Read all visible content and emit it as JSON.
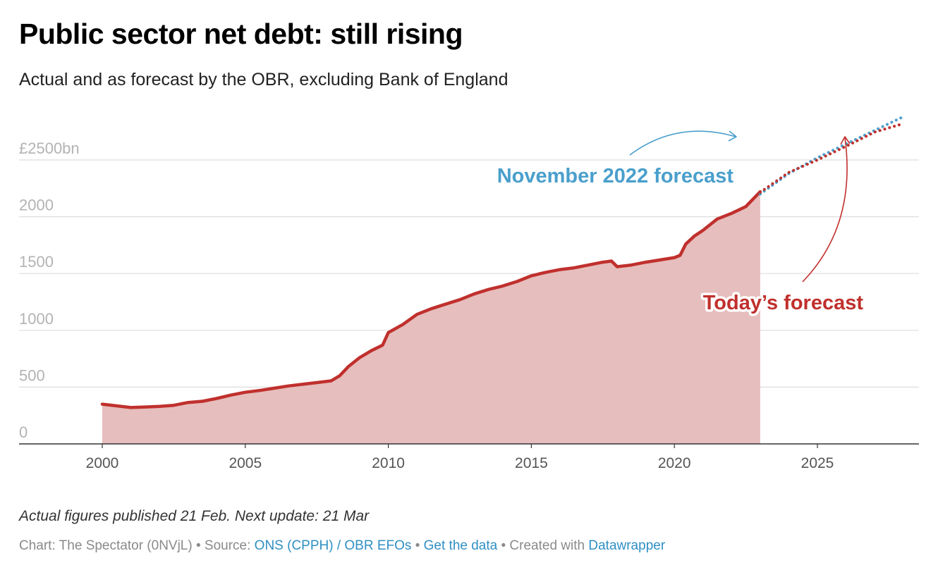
{
  "header": {
    "title": "Public sector net debt: still rising",
    "subtitle": "Actual and as forecast by the OBR, excluding Bank of England"
  },
  "footer": {
    "note": "Actual figures published 21 Feb. Next update: 21 Mar",
    "credit_prefix": "Chart: The Spectator (0NVjL) • Source: ",
    "source_link": "ONS (CPPH) / OBR EFOs",
    "separator1": " • ",
    "data_link": "Get the data",
    "separator2": " • Created with ",
    "tool_link": "Datawrapper"
  },
  "colors": {
    "actual_line": "#c0302d",
    "actual_fill": "#e6bebd",
    "nov2022_forecast": "#4a9fcc",
    "today_forecast": "#c0302d",
    "gridline": "#dddddd",
    "axis": "#333333"
  },
  "chart_data": {
    "type": "area",
    "title": "Public sector net debt: still rising",
    "xlabel": "",
    "ylabel": "",
    "x_range": [
      1998.8,
      2028.4
    ],
    "ylim": [
      0,
      2650
    ],
    "y_ticks": [
      0,
      500,
      1000,
      1500,
      2000,
      2500
    ],
    "y_tick_labels": [
      "0",
      "500",
      "1000",
      "1500",
      "2000",
      "£2500bn"
    ],
    "x_ticks": [
      2000,
      2005,
      2010,
      2015,
      2020,
      2025
    ],
    "x_tick_labels": [
      "2000",
      "2005",
      "2010",
      "2015",
      "2020",
      "2025"
    ],
    "grid": true,
    "series": [
      {
        "name": "Actual",
        "style": "solid-area",
        "x": [
          2000.0,
          2000.5,
          2001.0,
          2001.5,
          2002.0,
          2002.5,
          2003.0,
          2003.5,
          2004.0,
          2004.5,
          2005.0,
          2005.5,
          2006.0,
          2006.5,
          2007.0,
          2007.5,
          2008.0,
          2008.3,
          2008.6,
          2009.0,
          2009.4,
          2009.8,
          2010.0,
          2010.5,
          2011.0,
          2011.5,
          2012.0,
          2012.5,
          2013.0,
          2013.5,
          2014.0,
          2014.5,
          2015.0,
          2015.5,
          2016.0,
          2016.5,
          2017.0,
          2017.5,
          2017.8,
          2018.0,
          2018.5,
          2019.0,
          2019.5,
          2020.0,
          2020.2,
          2020.4,
          2020.7,
          2021.0,
          2021.5,
          2022.0,
          2022.5,
          2023.0
        ],
        "values": [
          350,
          335,
          320,
          325,
          330,
          340,
          365,
          375,
          400,
          430,
          455,
          470,
          490,
          510,
          525,
          540,
          555,
          600,
          680,
          760,
          820,
          870,
          980,
          1050,
          1140,
          1190,
          1230,
          1270,
          1320,
          1360,
          1390,
          1430,
          1480,
          1510,
          1535,
          1550,
          1575,
          1600,
          1610,
          1560,
          1575,
          1600,
          1620,
          1640,
          1660,
          1760,
          1830,
          1880,
          1980,
          2030,
          2090,
          2220
        ]
      },
      {
        "name": "November 2022 forecast",
        "style": "dotted",
        "x": [
          2023.0,
          2024.0,
          2025.0,
          2026.0,
          2027.0,
          2028.0
        ],
        "values": [
          2200,
          2380,
          2520,
          2640,
          2760,
          2880
        ]
      },
      {
        "name": "Today's forecast",
        "style": "dotted",
        "x": [
          2023.0,
          2024.0,
          2025.0,
          2026.0,
          2027.0,
          2028.0
        ],
        "values": [
          2215,
          2390,
          2500,
          2620,
          2745,
          2820
        ]
      }
    ],
    "annotations": [
      {
        "text": "November 2022 forecast",
        "series": "November 2022 forecast"
      },
      {
        "text": "Today’s forecast",
        "series": "Today's forecast"
      }
    ]
  }
}
